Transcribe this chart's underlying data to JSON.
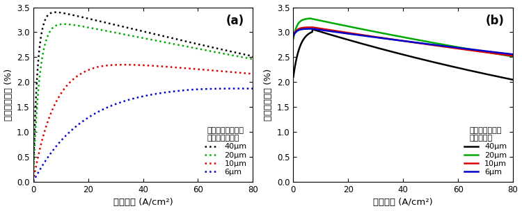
{
  "panel_a_label": "(a)",
  "panel_b_label": "(b)",
  "xlabel": "电流密度 (A/cm²)",
  "ylabel": "外部量子效率 (%)",
  "xlim": [
    0,
    80
  ],
  "ylim": [
    0.0,
    3.5
  ],
  "yticks": [
    0.0,
    0.5,
    1.0,
    1.5,
    2.0,
    2.5,
    3.0,
    3.5
  ],
  "xticks": [
    0,
    20,
    40,
    60,
    80
  ],
  "legend_title_a1": "电感耦合等离子体",
  "legend_title_a2": "蚀刻样品的尺寸",
  "legend_title_b1": "中性粒子束蚀刻",
  "legend_title_b2": "样品的尺寸",
  "legend_labels": [
    "40μm",
    "20μm",
    "10μm",
    "6μm"
  ],
  "colors_a": [
    "#000000",
    "#00aa00",
    "#dd0000",
    "#0000cc"
  ],
  "colors_b": [
    "#000000",
    "#00aa00",
    "#dd0000",
    "#0000cc"
  ],
  "background_color": "#ffffff"
}
